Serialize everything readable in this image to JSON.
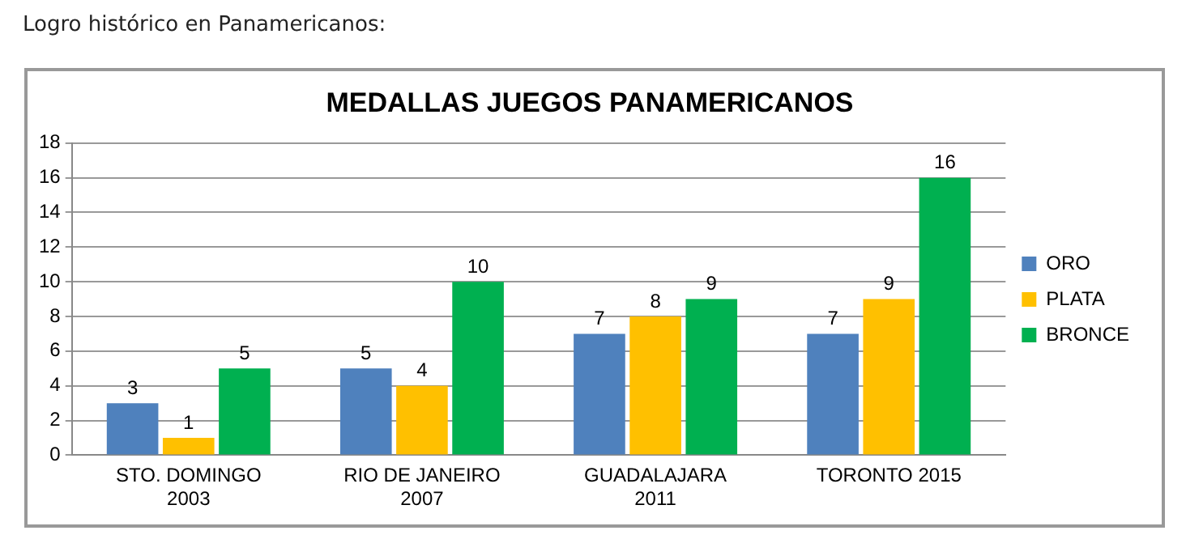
{
  "chart_data": {
    "type": "bar",
    "title": "MEDALLAS JUEGOS PANAMERICANOS",
    "annotations": [
      "Logro histórico en Panamericanos:"
    ],
    "categories": [
      "STO. DOMINGO\n2003",
      "RIO DE JANEIRO\n2007",
      "GUADALAJARA\n2011",
      "TORONTO 2015"
    ],
    "series": [
      {
        "name": "ORO",
        "color": "#4f81bd",
        "values": [
          3,
          5,
          7,
          7
        ]
      },
      {
        "name": "PLATA",
        "color": "#ffc000",
        "values": [
          1,
          4,
          8,
          9
        ]
      },
      {
        "name": "BRONCE",
        "color": "#00b050",
        "values": [
          5,
          10,
          9,
          16
        ]
      }
    ],
    "ylim": [
      0,
      18
    ],
    "yticks": [
      0,
      2,
      4,
      6,
      8,
      10,
      12,
      14,
      16,
      18
    ],
    "grid": "y",
    "legend": "right",
    "data_labels": true
  }
}
